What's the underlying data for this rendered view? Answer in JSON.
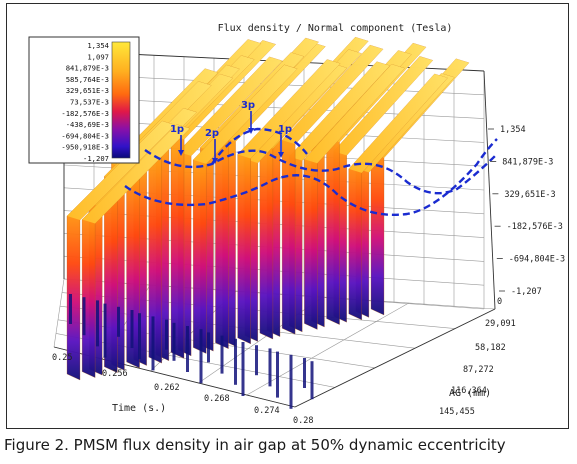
{
  "caption": "Figure 2. PMSM flux density in air gap at 50% dynamic eccentricity",
  "chart_data": {
    "type": "surface3d",
    "title": "Flux density / Normal component (Tesla)",
    "xlabel": "Time (s.)",
    "ylabel": "AG (mm)",
    "time_ticks": [
      "0.25",
      "0.256",
      "0.262",
      "0.268",
      "0.274",
      "0.28"
    ],
    "time_range": [
      0.25,
      0.28
    ],
    "ag_ticks": [
      "0",
      "29,091",
      "58,182",
      "87,272",
      "116,364",
      "145,455"
    ],
    "ag_range": [
      0,
      145.455
    ],
    "z_ticks": [
      "1,354",
      "841,879E-3",
      "329,651E-3",
      "-182,576E-3",
      "-694,804E-3",
      "-1,207"
    ],
    "z_range": [
      -1.207,
      1.354
    ],
    "colorbar_labels": [
      "1,354",
      "1,097",
      "841,879E-3",
      "585,764E-3",
      "329,651E-3",
      "73,537E-3",
      "-182,576E-3",
      "-438,69E-3",
      "-694,804E-3",
      "-950,918E-3",
      "-1,207"
    ],
    "colorbar_colors": [
      "#ffe23a",
      "#ffcc2e",
      "#ffaf1f",
      "#ff8c12",
      "#ff5a08",
      "#f02020",
      "#c0106a",
      "#8a10a0",
      "#5a14c0",
      "#3010c8",
      "#0a0a8a"
    ],
    "harmonic_markers": [
      "1p",
      "2p",
      "3p",
      "1p"
    ],
    "annotation_color": "#1a2bd0",
    "grid": true
  }
}
